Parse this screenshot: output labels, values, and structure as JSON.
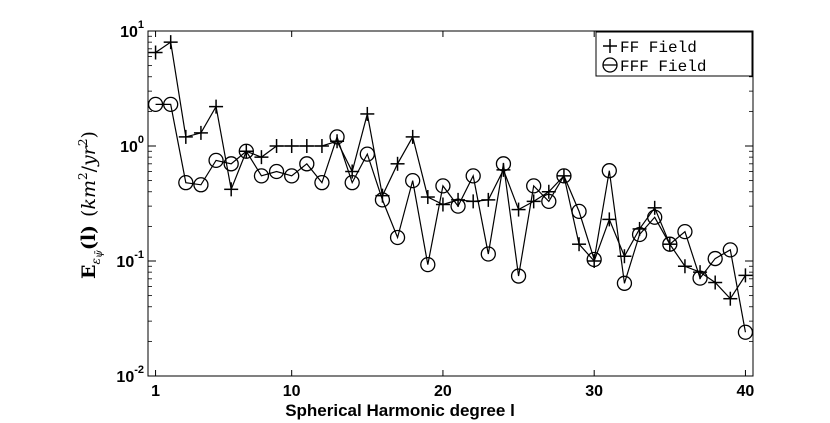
{
  "chart_data": {
    "type": "line",
    "title": "",
    "xlabel": "Spherical Harmonic degree l",
    "ylabel": "E_{ε_ψ̄}(l) (km²/yr²)",
    "ylabel_parts": {
      "E": "E",
      "sub_eps": "ε",
      "sub_psi": "ψ̄",
      "arg": "(l)",
      "unit_open": "(",
      "unit_km": "km",
      "unit_km_exp": "2",
      "unit_slash": "/",
      "unit_yr": "yr",
      "unit_yr_exp": "2",
      "unit_close": ")"
    },
    "xlim": [
      0.5,
      40.5
    ],
    "ylim": [
      0.01,
      10
    ],
    "yscale": "log",
    "xticks": [
      1,
      10,
      20,
      30,
      40
    ],
    "xtick_labels": [
      "1",
      "10",
      "20",
      "30",
      "40"
    ],
    "ytick_labels": [
      {
        "base": "10",
        "exp": "-2"
      },
      {
        "base": "10",
        "exp": "-1"
      },
      {
        "base": "10",
        "exp": "0"
      },
      {
        "base": "10",
        "exp": "1"
      }
    ],
    "legend_position": "top-right",
    "grid": false,
    "x": [
      1,
      2,
      3,
      4,
      5,
      6,
      7,
      8,
      9,
      10,
      11,
      12,
      13,
      14,
      15,
      16,
      17,
      18,
      19,
      20,
      21,
      22,
      23,
      24,
      25,
      26,
      27,
      28,
      29,
      30,
      31,
      32,
      33,
      34,
      35,
      36,
      37,
      38,
      39,
      40
    ],
    "series": [
      {
        "name": "FF Field",
        "marker": "plus",
        "values": [
          6.5,
          8.0,
          1.2,
          1.3,
          2.2,
          0.42,
          0.9,
          0.8,
          1.0,
          1.0,
          1.0,
          1.0,
          1.1,
          0.6,
          1.9,
          0.37,
          0.7,
          1.2,
          0.36,
          0.31,
          0.34,
          0.33,
          0.34,
          0.62,
          0.28,
          0.33,
          0.4,
          0.55,
          0.14,
          0.1,
          0.23,
          0.11,
          0.19,
          0.29,
          0.14,
          0.09,
          0.08,
          0.065,
          0.047,
          0.075
        ]
      },
      {
        "name": "FFF Field",
        "marker": "circle",
        "values": [
          2.3,
          2.3,
          0.48,
          0.46,
          0.75,
          0.7,
          0.9,
          0.55,
          0.6,
          0.55,
          0.7,
          0.48,
          1.2,
          0.48,
          0.85,
          0.34,
          0.16,
          0.5,
          0.093,
          0.45,
          0.3,
          0.55,
          0.115,
          0.7,
          0.074,
          0.45,
          0.33,
          0.55,
          0.27,
          0.103,
          0.61,
          0.064,
          0.17,
          0.24,
          0.14,
          0.18,
          0.071,
          0.105,
          0.125,
          0.024
        ]
      }
    ]
  }
}
